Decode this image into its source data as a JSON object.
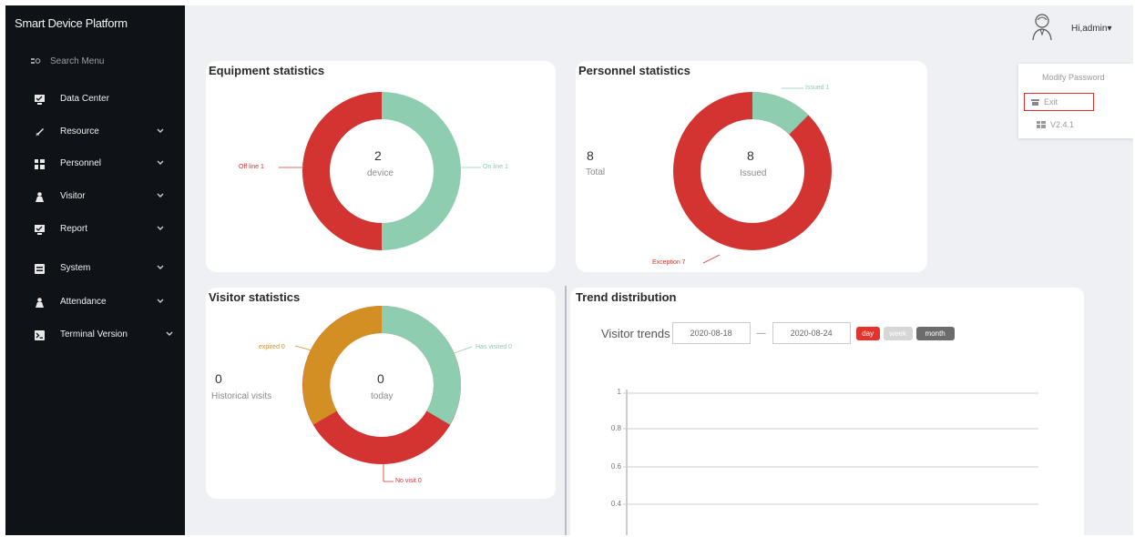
{
  "app": {
    "title": "Smart Device Platform"
  },
  "sidebar": {
    "search": "Search Menu",
    "items": [
      {
        "label": "Data Center",
        "icon": "monitor-icon",
        "expandable": false
      },
      {
        "label": "Resource",
        "icon": "rocket-icon",
        "expandable": true
      },
      {
        "label": "Personnel",
        "icon": "personnel-icon",
        "expandable": true
      },
      {
        "label": "Visitor",
        "icon": "person-icon",
        "expandable": true
      },
      {
        "label": "Report",
        "icon": "monitor-icon",
        "expandable": true
      },
      {
        "label": "System",
        "icon": "system-icon",
        "expandable": true
      },
      {
        "label": "Attendance",
        "icon": "person-icon",
        "expandable": true
      },
      {
        "label": "Terminal Version",
        "icon": "terminal-icon",
        "expandable": true
      }
    ]
  },
  "user": {
    "name": "Hi,admin"
  },
  "menu": {
    "modify": "Modify Password",
    "exit": "Exit",
    "version": "V2.4.1"
  },
  "equipment": {
    "title": "Equipment statistics",
    "center_value": "2",
    "center_label": "device",
    "offline_label": "Off line 1",
    "online_label": "On line 1",
    "offline": 1,
    "online": 1
  },
  "personnel": {
    "title": "Personnel statistics",
    "total_value": "8",
    "total_label": "Total",
    "center_value": "8",
    "center_label": "Issued",
    "issued_label": "Issued 1",
    "exception_label": "Exception 7",
    "issued": 1,
    "exception": 7
  },
  "visitor": {
    "title": "Visitor statistics",
    "historical_value": "0",
    "historical_label": "Historical visits",
    "center_value": "0",
    "center_label": "today",
    "expired_label": "expired 0",
    "visited_label": "Has visited 0",
    "novisit_label": "No visit 0"
  },
  "trend": {
    "title": "Trend distribution",
    "label": "Visitor trends",
    "start": "2020-08-18",
    "separator": "—",
    "end": "2020-08-24",
    "btn_day": "day",
    "btn_week": "week",
    "btn_month": "month",
    "y_ticks": [
      "1",
      "0.8",
      "0.6",
      "0.4"
    ]
  },
  "colors": {
    "red": "#d33431",
    "green": "#8fcdb1",
    "orange": "#d48f24",
    "sidebar": "#0f1217"
  }
}
